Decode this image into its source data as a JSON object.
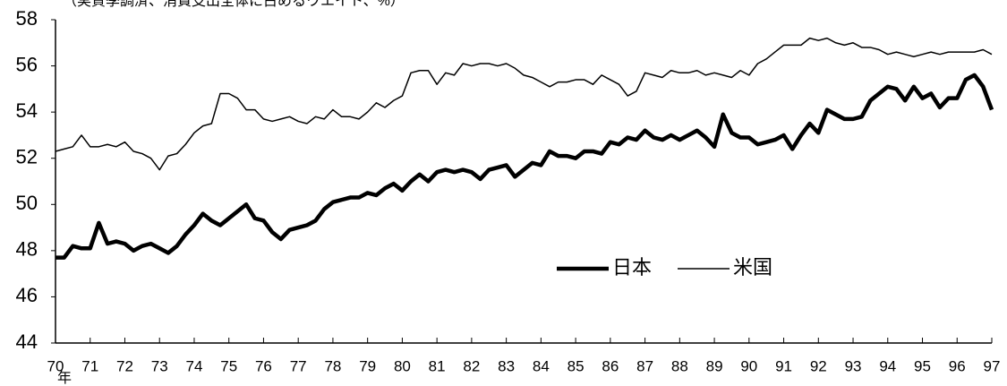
{
  "chart_data": {
    "type": "line",
    "subtitle": "（実質季調済、消費支出全体に占めるウエイト、%）",
    "x_label": "年",
    "x": [
      70,
      70.25,
      70.5,
      70.75,
      71,
      71.25,
      71.5,
      71.75,
      72,
      72.25,
      72.5,
      72.75,
      73,
      73.25,
      73.5,
      73.75,
      74,
      74.25,
      74.5,
      74.75,
      75,
      75.25,
      75.5,
      75.75,
      76,
      76.25,
      76.5,
      76.75,
      77,
      77.25,
      77.5,
      77.75,
      78,
      78.25,
      78.5,
      78.75,
      79,
      79.25,
      79.5,
      79.75,
      80,
      80.25,
      80.5,
      80.75,
      81,
      81.25,
      81.5,
      81.75,
      82,
      82.25,
      82.5,
      82.75,
      83,
      83.25,
      83.5,
      83.75,
      84,
      84.25,
      84.5,
      84.75,
      85,
      85.25,
      85.5,
      85.75,
      86,
      86.25,
      86.5,
      86.75,
      87,
      87.25,
      87.5,
      87.75,
      88,
      88.25,
      88.5,
      88.75,
      89,
      89.25,
      89.5,
      89.75,
      90,
      90.25,
      90.5,
      90.75,
      91,
      91.25,
      91.5,
      91.75,
      92,
      92.25,
      92.5,
      92.75,
      93,
      93.25,
      93.5,
      93.75,
      94,
      94.25,
      94.5,
      94.75,
      95,
      95.25,
      95.5,
      95.75,
      96,
      96.25,
      96.5,
      96.75,
      97
    ],
    "series": [
      {
        "name": "日本",
        "color": "#000000",
        "values": [
          47.7,
          47.7,
          48.2,
          48.1,
          48.1,
          49.2,
          48.3,
          48.4,
          48.3,
          48.0,
          48.2,
          48.3,
          48.1,
          47.9,
          48.2,
          48.7,
          49.1,
          49.6,
          49.3,
          49.1,
          49.4,
          49.7,
          50.0,
          49.4,
          49.3,
          48.8,
          48.5,
          48.9,
          49.0,
          49.1,
          49.3,
          49.8,
          50.1,
          50.2,
          50.3,
          50.3,
          50.5,
          50.4,
          50.7,
          50.9,
          50.6,
          51.0,
          51.3,
          51.0,
          51.4,
          51.5,
          51.4,
          51.5,
          51.4,
          51.1,
          51.5,
          51.6,
          51.7,
          51.2,
          51.5,
          51.8,
          51.7,
          52.3,
          52.1,
          52.1,
          52.0,
          52.3,
          52.3,
          52.2,
          52.7,
          52.6,
          52.9,
          52.8,
          53.2,
          52.9,
          52.8,
          53.0,
          52.8,
          53.0,
          53.2,
          52.9,
          52.5,
          53.9,
          53.1,
          52.9,
          52.9,
          52.6,
          52.7,
          52.8,
          53.0,
          52.4,
          53.0,
          53.5,
          53.1,
          54.1,
          53.9,
          53.7,
          53.7,
          53.8,
          54.5,
          54.8,
          55.1,
          55.0,
          54.5,
          55.1,
          54.6,
          54.8,
          54.2,
          54.6,
          54.6,
          55.4,
          55.6,
          55.1,
          54.1
        ]
      },
      {
        "name": "米国",
        "color": "#000000",
        "values": [
          52.3,
          52.4,
          52.5,
          53.0,
          52.5,
          52.5,
          52.6,
          52.5,
          52.7,
          52.3,
          52.2,
          52.0,
          51.5,
          52.1,
          52.2,
          52.6,
          53.1,
          53.4,
          53.5,
          54.8,
          54.8,
          54.6,
          54.1,
          54.1,
          53.7,
          53.6,
          53.7,
          53.8,
          53.6,
          53.5,
          53.8,
          53.7,
          54.1,
          53.8,
          53.8,
          53.7,
          54.0,
          54.4,
          54.2,
          54.5,
          54.7,
          55.7,
          55.8,
          55.8,
          55.2,
          55.7,
          55.6,
          56.1,
          56.0,
          56.1,
          56.1,
          56.0,
          56.1,
          55.9,
          55.6,
          55.5,
          55.3,
          55.1,
          55.3,
          55.3,
          55.4,
          55.4,
          55.2,
          55.6,
          55.4,
          55.2,
          54.7,
          54.9,
          55.7,
          55.6,
          55.5,
          55.8,
          55.7,
          55.7,
          55.8,
          55.6,
          55.7,
          55.6,
          55.5,
          55.8,
          55.6,
          56.1,
          56.3,
          56.6,
          56.9,
          56.9,
          56.9,
          57.2,
          57.1,
          57.2,
          57.0,
          56.9,
          57.0,
          56.8,
          56.8,
          56.7,
          56.5,
          56.6,
          56.5,
          56.4,
          56.5,
          56.6,
          56.5,
          56.6,
          56.6,
          56.6,
          56.6,
          56.7,
          56.5
        ]
      }
    ],
    "xlim": [
      70,
      97
    ],
    "xticks": [
      70,
      71,
      72,
      73,
      74,
      75,
      76,
      77,
      78,
      79,
      80,
      81,
      82,
      83,
      84,
      85,
      86,
      87,
      88,
      89,
      90,
      91,
      92,
      93,
      94,
      95,
      96,
      97
    ],
    "ylim": [
      44,
      58
    ],
    "yticks": [
      44,
      46,
      48,
      50,
      52,
      54,
      56,
      58
    ],
    "legend": "lower right",
    "grid": false
  }
}
